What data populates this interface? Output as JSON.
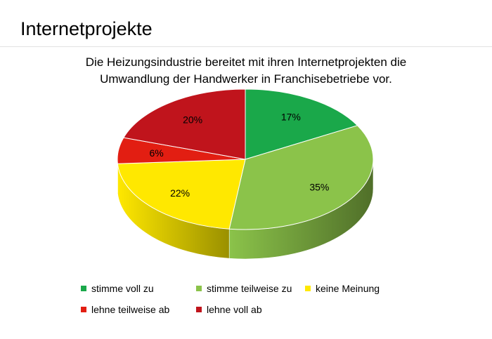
{
  "slide": {
    "title": "Internetprojekte"
  },
  "chart_data": {
    "type": "pie",
    "title_lines": [
      "Die Heizungsindustrie bereitet mit ihren Internetprojekten die",
      "Umwandlung der Handwerker in Franchisebetriebe vor."
    ],
    "categories": [
      "stimme voll zu",
      "stimme teilweise zu",
      "keine Meinung",
      "lehne teilweise ab",
      "lehne voll ab"
    ],
    "values": [
      17,
      35,
      22,
      6,
      20
    ],
    "data_labels": [
      "17%",
      "35%",
      "22%",
      "6%",
      "20%"
    ],
    "colors": [
      "#1aa84a",
      "#8bc34a",
      "#ffe800",
      "#e21e12",
      "#c0141c"
    ],
    "side_colors": [
      "#0e6b2c",
      "#506f29",
      "#9a9000",
      "#8a100b",
      "#780c12"
    ],
    "legend_position": "bottom",
    "style": "3d"
  }
}
